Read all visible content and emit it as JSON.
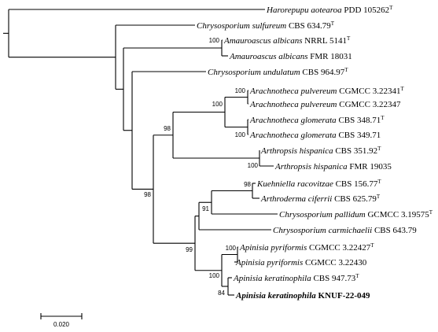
{
  "taxa": [
    {
      "species": "Harorepupu aotearoa",
      "strain": "PDD 105262",
      "type": true
    },
    {
      "species": "Chrysosporium sulfureum",
      "strain": "CBS 634.79",
      "type": true
    },
    {
      "species": "Amauroascus albicans",
      "strain": "NRRL 5141",
      "type": true
    },
    {
      "species": "Amauroascus albicans",
      "strain": "FMR 18031",
      "type": false
    },
    {
      "species": "Chrysosporium undulatum",
      "strain": "CBS 964.97",
      "type": true
    },
    {
      "species": "Arachnotheca pulvereum",
      "strain": "CGMCC 3.22341",
      "type": true
    },
    {
      "species": "Arachnotheca pulvereum",
      "strain": "CGMCC 3.22347",
      "type": false
    },
    {
      "species": "Arachnotheca glomerata",
      "strain": "CBS 348.71",
      "type": true
    },
    {
      "species": "Arachnotheca glomerata",
      "strain": "CBS 349.71",
      "type": false
    },
    {
      "species": "Arthropsis hispanica",
      "strain": "CBS 351.92",
      "type": true
    },
    {
      "species": "Arthropsis hispanica",
      "strain": "FMR 19035",
      "type": false
    },
    {
      "species": "Kuehniella racovitzae",
      "strain": "CBS 156.77",
      "type": true
    },
    {
      "species": "Arthroderma ciferrii",
      "strain": "CBS 625.79",
      "type": true
    },
    {
      "species": "Chrysosporium pallidum",
      "strain": "GCMCC 3.19575",
      "type": true
    },
    {
      "species": "Chrysosporium carmichaelii",
      "strain": "CBS 643.79",
      "type": false
    },
    {
      "species": "Apinisia pyriformis",
      "strain": "CGMCC 3.22427",
      "type": true
    },
    {
      "species": "Apinisia pyriformis",
      "strain": "CGMCC 3.22430",
      "type": false
    },
    {
      "species": "Apinisia keratinophila",
      "strain": "CBS 947.73",
      "type": true
    },
    {
      "species": "Apinisia keratinophila",
      "strain": "KNUF-22-049",
      "type": false,
      "highlight": true
    }
  ],
  "type_marker": "T",
  "bootstrap": [
    {
      "value": "100",
      "node": "amauroascus"
    },
    {
      "value": "100",
      "node": "pulvereum"
    },
    {
      "value": "100",
      "node": "arachnotheca"
    },
    {
      "value": "100",
      "node": "glomerata"
    },
    {
      "value": "98",
      "node": "arachno-arthropsis"
    },
    {
      "value": "100",
      "node": "arthropsis"
    },
    {
      "value": "98",
      "node": "kuehniella-arthroderma"
    },
    {
      "value": "91",
      "node": "kuehniella-pallidum"
    },
    {
      "value": "98",
      "node": "ingroup"
    },
    {
      "value": "100",
      "node": "pyriformis"
    },
    {
      "value": "100",
      "node": "apinisia"
    },
    {
      "value": "84",
      "node": "keratinophila"
    },
    {
      "value": "99",
      "node": "lower-clade"
    }
  ],
  "scale_bar": {
    "label": "0.020"
  }
}
